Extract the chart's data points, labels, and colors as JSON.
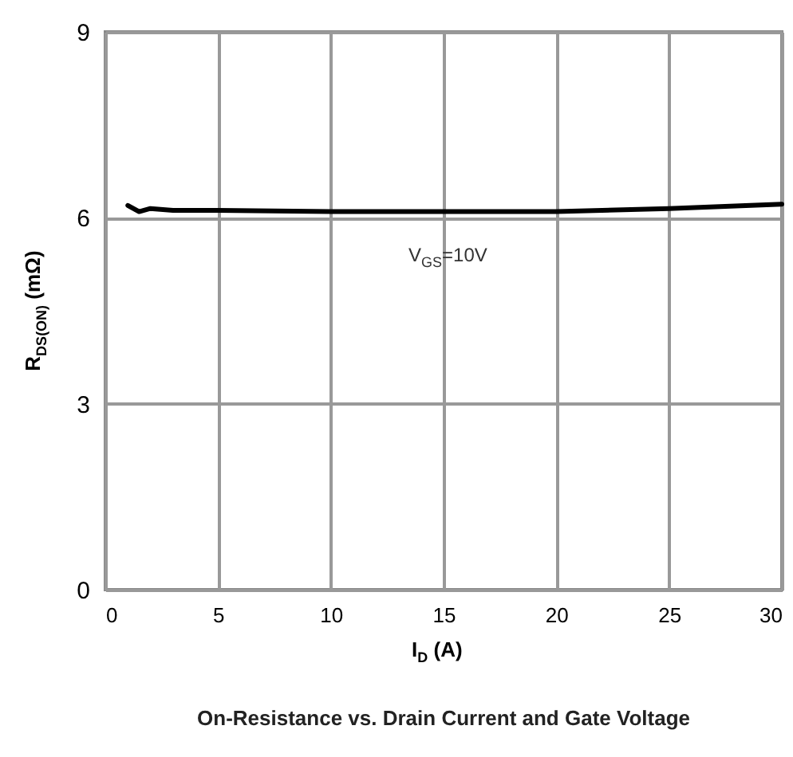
{
  "chart_data": {
    "type": "line",
    "title": "On-Resistance vs. Drain Current and Gate Voltage",
    "xlabel": "I$_{D}$ (A)",
    "ylabel": "R$_{DS(ON)}$ (mΩ)",
    "annotations": [
      "V$_{GS}$=10V"
    ],
    "x": [
      1,
      1.5,
      2,
      3,
      5,
      10,
      15,
      20,
      25,
      30
    ],
    "series": [
      {
        "color": "#000000",
        "values": [
          6.2,
          6.1,
          6.15,
          6.12,
          6.12,
          6.1,
          6.1,
          6.1,
          6.15,
          6.22
        ]
      }
    ],
    "xlim": [
      0,
      30
    ],
    "xticks": [
      0,
      5,
      10,
      15,
      20,
      25,
      30
    ],
    "ylim": [
      0,
      9
    ],
    "yticks": [
      0,
      3,
      6,
      9
    ],
    "grid": true,
    "line_style": "solid",
    "marker": "none"
  }
}
